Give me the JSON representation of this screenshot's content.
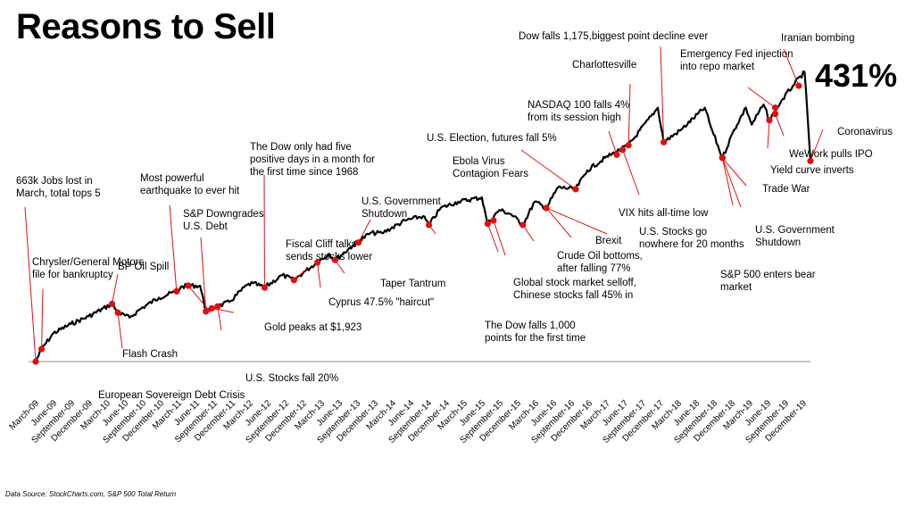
{
  "title": "Reasons to Sell",
  "total_return_label": "431%",
  "source": "Data Source: StockCharts.com, S&P 500 Total Return",
  "chart_data": {
    "type": "line",
    "title": "Reasons to Sell",
    "xlabel": "",
    "ylabel": "",
    "grid": false,
    "legend": "none",
    "line_color": "#000000",
    "marker_color": "#e01010",
    "x_tick_labels": [
      "March-09",
      "June-09",
      "September-09",
      "December-09",
      "March-10",
      "June-10",
      "September-10",
      "December-10",
      "March-11",
      "June-11",
      "September-11",
      "December-11",
      "March-12",
      "June-12",
      "September-12",
      "December-12",
      "March-13",
      "June-13",
      "September-13",
      "December-13",
      "March-14",
      "June-14",
      "September-14",
      "December-14",
      "March-15",
      "June-15",
      "September-15",
      "December-15",
      "March-16",
      "June-16",
      "September-16",
      "December-16",
      "March-17",
      "June-17",
      "September-17",
      "December-17",
      "March-18",
      "June-18",
      "September-18",
      "December-18",
      "March-19",
      "June-19",
      "September-19",
      "December-19"
    ],
    "x_range": [
      "2009-03",
      "2020-03"
    ],
    "y_range": [
      0,
      5.6
    ],
    "series": [
      {
        "points": [
          [
            "2009-03",
            1.0
          ],
          [
            "2009-04",
            1.2
          ],
          [
            "2009-06",
            1.45
          ],
          [
            "2009-09",
            1.6
          ],
          [
            "2009-12",
            1.72
          ],
          [
            "2010-04",
            1.92
          ],
          [
            "2010-05",
            1.78
          ],
          [
            "2010-07",
            1.7
          ],
          [
            "2010-09",
            1.85
          ],
          [
            "2010-12",
            2.02
          ],
          [
            "2011-03",
            2.12
          ],
          [
            "2011-04",
            2.2
          ],
          [
            "2011-05",
            2.21
          ],
          [
            "2011-07",
            2.21
          ],
          [
            "2011-08",
            1.8
          ],
          [
            "2011-10",
            1.88
          ],
          [
            "2011-12",
            1.95
          ],
          [
            "2012-03",
            2.22
          ],
          [
            "2012-04",
            2.25
          ],
          [
            "2012-06",
            2.18
          ],
          [
            "2012-09",
            2.38
          ],
          [
            "2012-11",
            2.3
          ],
          [
            "2013-01",
            2.45
          ],
          [
            "2013-05",
            2.72
          ],
          [
            "2013-06",
            2.62
          ],
          [
            "2013-09",
            2.85
          ],
          [
            "2013-12",
            3.05
          ],
          [
            "2014-02",
            3.05
          ],
          [
            "2014-06",
            3.25
          ],
          [
            "2014-09",
            3.32
          ],
          [
            "2014-10",
            3.18
          ],
          [
            "2014-12",
            3.45
          ],
          [
            "2015-03",
            3.55
          ],
          [
            "2015-07",
            3.62
          ],
          [
            "2015-08",
            3.2
          ],
          [
            "2015-10",
            3.42
          ],
          [
            "2015-12",
            3.35
          ],
          [
            "2016-02",
            3.18
          ],
          [
            "2016-04",
            3.55
          ],
          [
            "2016-06",
            3.45
          ],
          [
            "2016-08",
            3.78
          ],
          [
            "2016-11",
            3.75
          ],
          [
            "2017-01",
            4.05
          ],
          [
            "2017-04",
            4.25
          ],
          [
            "2017-08",
            4.45
          ],
          [
            "2018-01",
            5.05
          ],
          [
            "2018-02",
            4.5
          ],
          [
            "2018-05",
            4.7
          ],
          [
            "2018-09",
            5.05
          ],
          [
            "2018-10",
            4.75
          ],
          [
            "2018-12",
            4.25
          ],
          [
            "2019-02",
            4.7
          ],
          [
            "2019-04",
            5.05
          ],
          [
            "2019-05",
            4.78
          ],
          [
            "2019-07",
            5.1
          ],
          [
            "2019-08",
            4.85
          ],
          [
            "2019-10",
            5.15
          ],
          [
            "2019-12",
            5.4
          ],
          [
            "2020-02",
            5.62
          ],
          [
            "2020-03",
            4.2
          ]
        ]
      }
    ],
    "annotations": [
      {
        "label": [
          "663k Jobs lost in",
          "March, total tops 5"
        ],
        "date": "2009-03",
        "value": 1.0
      },
      {
        "label": [
          "Chrysler/General Motors",
          "file for bankruptcy"
        ],
        "date": "2009-04",
        "value": 1.2
      },
      {
        "label": [
          "BP Oil Spill"
        ],
        "date": "2010-04",
        "value": 1.92
      },
      {
        "label": [
          "Flash Crash"
        ],
        "date": "2010-05",
        "value": 1.78
      },
      {
        "label": [
          "Most powerful",
          "earthquake to ever hit"
        ],
        "date": "2011-03",
        "value": 2.12
      },
      {
        "label": [
          "S&P Downgrades",
          "U.S. Debt"
        ],
        "date": "2011-08",
        "value": 1.8
      },
      {
        "label": [
          "European Sovereign Debt Crisis"
        ],
        "date": "2011-05",
        "value": 2.21
      },
      {
        "label": [
          "U.S. Stocks fall 20%"
        ],
        "date": "2011-10",
        "value": 1.88
      },
      {
        "label": [
          "Gold peaks at $1,923"
        ],
        "date": "2011-09",
        "value": 1.85
      },
      {
        "label": [
          "The Dow only had five",
          "positive days in a month for",
          "the first time since 1968"
        ],
        "date": "2012-06",
        "value": 2.18
      },
      {
        "label": [
          "Fiscal Cliff talks",
          "sends stocks lower"
        ],
        "date": "2012-11",
        "value": 2.3
      },
      {
        "label": [
          "Cyprus 47.5% \"haircut\""
        ],
        "date": "2013-03",
        "value": 2.58
      },
      {
        "label": [
          "Taper Tantrum"
        ],
        "date": "2013-06",
        "value": 2.62
      },
      {
        "label": [
          "U.S. Government",
          "Shutdown"
        ],
        "date": "2013-10",
        "value": 2.9
      },
      {
        "label": [
          "Ebola Virus",
          "Contagion Fears"
        ],
        "date": "2014-10",
        "value": 3.18
      },
      {
        "label": [
          "The Dow falls 1,000",
          "points for the first time"
        ],
        "date": "2015-08",
        "value": 3.2
      },
      {
        "label": [
          "Global stock market selloff,",
          "Chinese stocks fall 45% in"
        ],
        "date": "2015-09",
        "value": 3.25
      },
      {
        "label": [
          "Crude Oil bottoms,",
          "after falling 77%"
        ],
        "date": "2016-02",
        "value": 3.18
      },
      {
        "label": [
          "U.S. Stocks go",
          "nowhere for 20 months"
        ],
        "date": "2016-06",
        "value": 3.45
      },
      {
        "label": [
          "Brexit"
        ],
        "date": "2016-06",
        "value": 3.45
      },
      {
        "label": [
          "U.S. Election, futures fall 5%"
        ],
        "date": "2016-11",
        "value": 3.75
      },
      {
        "label": [
          "NASDAQ 100 falls 4%",
          "from its  session high"
        ],
        "date": "2017-06",
        "value": 4.3
      },
      {
        "label": [
          "VIX hits all-time low"
        ],
        "date": "2017-07",
        "value": 4.38
      },
      {
        "label": [
          "Charlottesville"
        ],
        "date": "2017-08",
        "value": 4.45
      },
      {
        "label": [
          "Dow falls 1,175,biggest point decline ever"
        ],
        "date": "2018-02",
        "value": 4.5
      },
      {
        "label": [
          "Trade War"
        ],
        "date": "2018-12",
        "value": 4.25
      },
      {
        "label": [
          "U.S. Government",
          "Shutdown"
        ],
        "date": "2018-12",
        "value": 4.25
      },
      {
        "label": [
          "S&P 500 enters bear",
          "market"
        ],
        "date": "2018-12",
        "value": 4.25
      },
      {
        "label": [
          "Yield curve inverts"
        ],
        "date": "2019-08",
        "value": 4.85
      },
      {
        "label": [
          "WeWork pulls IPO"
        ],
        "date": "2019-09",
        "value": 4.95
      },
      {
        "label": [
          "Emergency Fed injection",
          "into repo market"
        ],
        "date": "2019-09",
        "value": 5.05
      },
      {
        "label": [
          "Iranian bombing"
        ],
        "date": "2020-01",
        "value": 5.4
      },
      {
        "label": [
          "Coronavirus"
        ],
        "date": "2020-03",
        "value": 4.2
      }
    ]
  }
}
